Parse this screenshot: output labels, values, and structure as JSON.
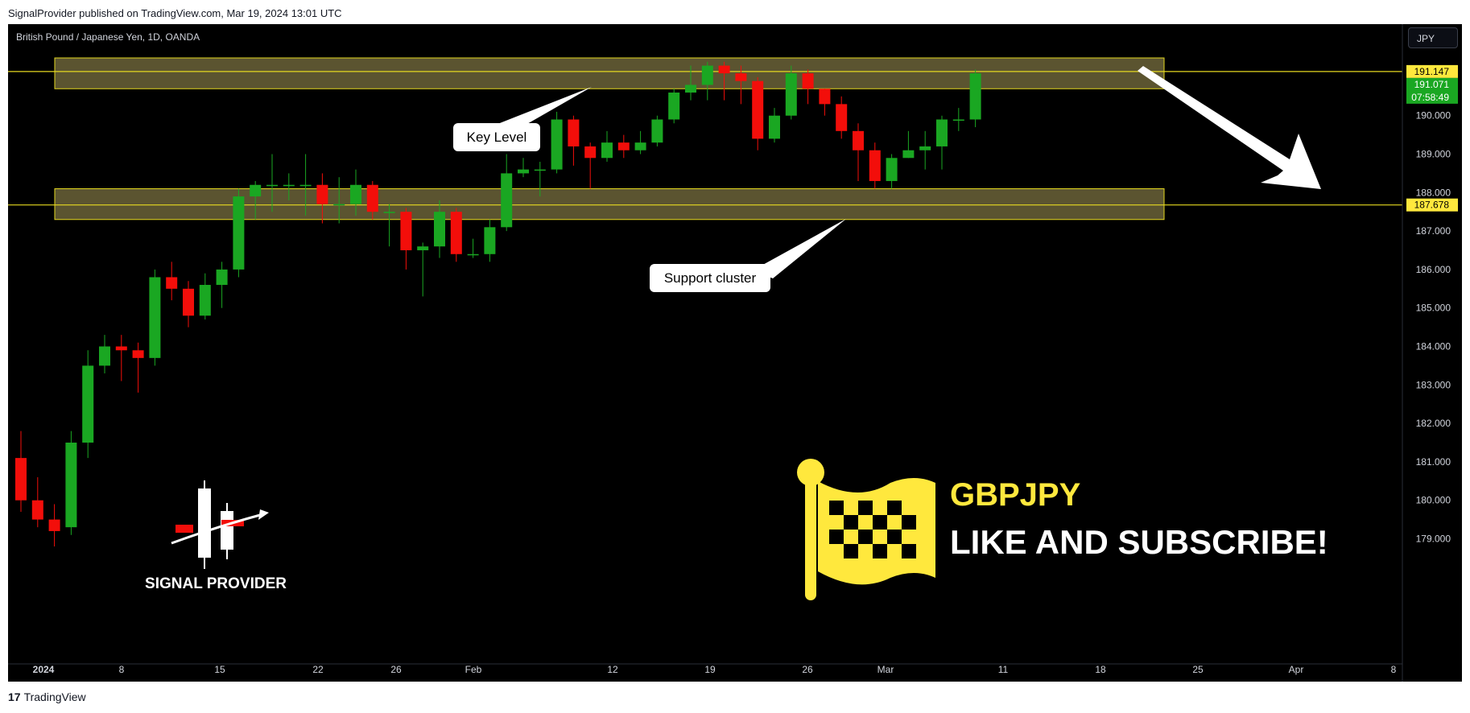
{
  "header": {
    "published_text": "SignalProvider published on TradingView.com, Mar 19, 2024 13:01 UTC"
  },
  "footer": {
    "brand": "TradingView",
    "logo_glyph": "17"
  },
  "chart": {
    "symbol_title": "British Pound / Japanese Yen, 1D, OANDA",
    "currency_button": "JPY",
    "annotations": {
      "key_level": "Key Level",
      "support_cluster": "Support cluster"
    },
    "brand_mark": {
      "text": "SIGNAL PROVIDER",
      "icon": "candlestick-arrow-icon"
    },
    "promo": {
      "symbol": "GBPJPY",
      "cta": "LIKE AND SUBSCRIBE!",
      "icon": "checkered-flag-icon"
    },
    "colors": {
      "up": "#1aa722",
      "down": "#f30e0a",
      "zone_fill": "#6b6338",
      "zone_border": "#e5d820",
      "label_yellow": "#ffe83d",
      "label_green": "#1aa722"
    }
  },
  "chart_data": {
    "type": "candlestick",
    "title": "British Pound / Japanese Yen, 1D, OANDA",
    "ylim": [
      178.0,
      192.0
    ],
    "y_ticks": [
      "179.000",
      "180.000",
      "181.000",
      "182.000",
      "183.000",
      "184.000",
      "185.000",
      "186.000",
      "187.000",
      "188.000",
      "189.000",
      "190.000"
    ],
    "x_ticks": [
      "2024",
      "8",
      "15",
      "22",
      "26",
      "Feb",
      "12",
      "19",
      "26",
      "Mar",
      "11",
      "18",
      "25",
      "Apr",
      "8"
    ],
    "price_labels": [
      {
        "price": 191.147,
        "text": "191.147",
        "color": "#ffe83d",
        "text_color": "#000000"
      },
      {
        "price": 191.071,
        "text": "191.071",
        "countdown": "07:58:49",
        "color": "#1aa722",
        "text_color": "#ffffff"
      },
      {
        "price": 187.678,
        "text": "187.678",
        "color": "#ffe83d",
        "text_color": "#000000"
      }
    ],
    "horizontal_lines": [
      191.147,
      187.678
    ],
    "zones": [
      {
        "name": "Key Level",
        "from": 190.7,
        "to": 191.5
      },
      {
        "name": "Support cluster",
        "from": 187.3,
        "to": 188.1
      }
    ],
    "candles": [
      {
        "o": 181.1,
        "h": 181.8,
        "l": 179.7,
        "c": 180.0
      },
      {
        "o": 180.0,
        "h": 180.6,
        "l": 179.3,
        "c": 179.5
      },
      {
        "o": 179.5,
        "h": 179.9,
        "l": 178.8,
        "c": 179.2
      },
      {
        "o": 179.3,
        "h": 181.8,
        "l": 179.1,
        "c": 181.5
      },
      {
        "o": 181.5,
        "h": 183.9,
        "l": 181.1,
        "c": 183.5
      },
      {
        "o": 183.5,
        "h": 184.3,
        "l": 183.3,
        "c": 184.0
      },
      {
        "o": 184.0,
        "h": 184.3,
        "l": 183.1,
        "c": 183.9
      },
      {
        "o": 183.9,
        "h": 184.1,
        "l": 182.8,
        "c": 183.7
      },
      {
        "o": 183.7,
        "h": 186.0,
        "l": 183.5,
        "c": 185.8
      },
      {
        "o": 185.8,
        "h": 186.2,
        "l": 185.2,
        "c": 185.5
      },
      {
        "o": 185.5,
        "h": 185.7,
        "l": 184.5,
        "c": 184.8
      },
      {
        "o": 184.8,
        "h": 185.9,
        "l": 184.7,
        "c": 185.6
      },
      {
        "o": 185.6,
        "h": 186.2,
        "l": 185.0,
        "c": 186.0
      },
      {
        "o": 186.0,
        "h": 188.1,
        "l": 185.8,
        "c": 187.9
      },
      {
        "o": 187.9,
        "h": 188.3,
        "l": 187.3,
        "c": 188.2
      },
      {
        "o": 188.2,
        "h": 189.0,
        "l": 187.5,
        "c": 188.2
      },
      {
        "o": 188.2,
        "h": 188.5,
        "l": 187.8,
        "c": 188.2
      },
      {
        "o": 188.2,
        "h": 189.0,
        "l": 187.4,
        "c": 188.2
      },
      {
        "o": 188.2,
        "h": 188.5,
        "l": 187.2,
        "c": 187.7
      },
      {
        "o": 187.7,
        "h": 188.4,
        "l": 187.2,
        "c": 187.7
      },
      {
        "o": 187.7,
        "h": 188.6,
        "l": 187.4,
        "c": 188.2
      },
      {
        "o": 188.2,
        "h": 188.3,
        "l": 187.3,
        "c": 187.5
      },
      {
        "o": 187.5,
        "h": 187.7,
        "l": 186.6,
        "c": 187.5
      },
      {
        "o": 187.5,
        "h": 187.6,
        "l": 186.0,
        "c": 186.5
      },
      {
        "o": 186.5,
        "h": 186.7,
        "l": 185.3,
        "c": 186.6
      },
      {
        "o": 186.6,
        "h": 187.8,
        "l": 186.3,
        "c": 187.5
      },
      {
        "o": 187.5,
        "h": 187.6,
        "l": 186.2,
        "c": 186.4
      },
      {
        "o": 186.4,
        "h": 186.8,
        "l": 186.3,
        "c": 186.4
      },
      {
        "o": 186.4,
        "h": 187.3,
        "l": 186.2,
        "c": 187.1
      },
      {
        "o": 187.1,
        "h": 189.0,
        "l": 187.0,
        "c": 188.5
      },
      {
        "o": 188.5,
        "h": 188.9,
        "l": 188.4,
        "c": 188.6
      },
      {
        "o": 188.6,
        "h": 188.8,
        "l": 187.9,
        "c": 188.6
      },
      {
        "o": 188.6,
        "h": 190.1,
        "l": 188.5,
        "c": 189.9
      },
      {
        "o": 189.9,
        "h": 190.0,
        "l": 188.7,
        "c": 189.2
      },
      {
        "o": 189.2,
        "h": 189.3,
        "l": 188.1,
        "c": 188.9
      },
      {
        "o": 188.9,
        "h": 189.6,
        "l": 188.8,
        "c": 189.3
      },
      {
        "o": 189.3,
        "h": 189.5,
        "l": 188.9,
        "c": 189.1
      },
      {
        "o": 189.1,
        "h": 189.6,
        "l": 189.0,
        "c": 189.3
      },
      {
        "o": 189.3,
        "h": 190.0,
        "l": 189.2,
        "c": 189.9
      },
      {
        "o": 189.9,
        "h": 190.7,
        "l": 189.8,
        "c": 190.6
      },
      {
        "o": 190.6,
        "h": 191.3,
        "l": 190.4,
        "c": 190.8
      },
      {
        "o": 190.8,
        "h": 191.4,
        "l": 190.4,
        "c": 191.3
      },
      {
        "o": 191.3,
        "h": 191.4,
        "l": 190.4,
        "c": 191.1
      },
      {
        "o": 191.1,
        "h": 191.3,
        "l": 190.3,
        "c": 190.9
      },
      {
        "o": 190.9,
        "h": 191.0,
        "l": 189.1,
        "c": 189.4
      },
      {
        "o": 189.4,
        "h": 190.2,
        "l": 189.3,
        "c": 190.0
      },
      {
        "o": 190.0,
        "h": 191.3,
        "l": 189.9,
        "c": 191.1
      },
      {
        "o": 191.1,
        "h": 191.2,
        "l": 190.3,
        "c": 190.7
      },
      {
        "o": 190.7,
        "h": 190.7,
        "l": 190.0,
        "c": 190.3
      },
      {
        "o": 190.3,
        "h": 190.5,
        "l": 189.4,
        "c": 189.6
      },
      {
        "o": 189.6,
        "h": 189.8,
        "l": 188.3,
        "c": 189.1
      },
      {
        "o": 189.1,
        "h": 189.3,
        "l": 188.1,
        "c": 188.3
      },
      {
        "o": 188.3,
        "h": 189.0,
        "l": 188.1,
        "c": 188.9
      },
      {
        "o": 188.9,
        "h": 189.6,
        "l": 188.9,
        "c": 189.1
      },
      {
        "o": 189.1,
        "h": 189.6,
        "l": 188.6,
        "c": 189.2
      },
      {
        "o": 189.2,
        "h": 190.0,
        "l": 188.6,
        "c": 189.9
      },
      {
        "o": 189.9,
        "h": 190.2,
        "l": 189.6,
        "c": 189.9
      },
      {
        "o": 189.9,
        "h": 191.2,
        "l": 189.7,
        "c": 191.1
      }
    ]
  }
}
